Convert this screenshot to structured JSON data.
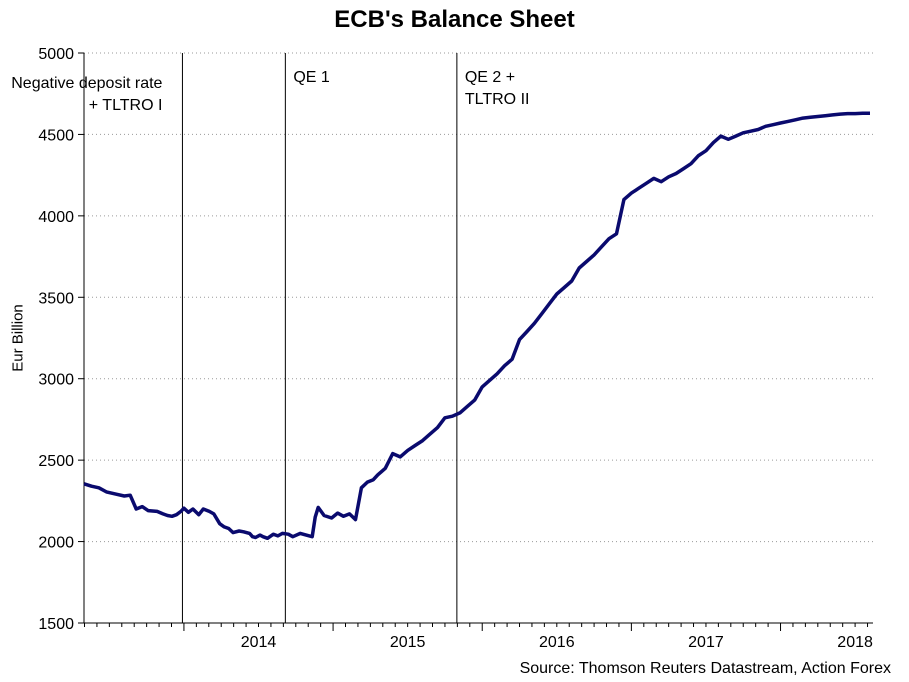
{
  "chart_data": {
    "type": "line",
    "title": "ECB's Balance Sheet",
    "ylabel": "Eur Billion",
    "xlabel": "",
    "source": "Source: Thomson Reuters Datastream, Action Forex",
    "ylim": [
      1500,
      5000
    ],
    "yticks": [
      1500,
      2000,
      2500,
      3000,
      3500,
      4000,
      4500,
      5000
    ],
    "xlim": [
      2013.33,
      2018.62
    ],
    "xticks": [
      {
        "label": "2014",
        "x": 2014.0
      },
      {
        "label": "2015",
        "x": 2015.0
      },
      {
        "label": "2016",
        "x": 2016.0
      },
      {
        "label": "2017",
        "x": 2017.0
      },
      {
        "label": "2018",
        "x": 2018.0
      }
    ],
    "grid": "horizontal-dotted",
    "line_color": "#0a0a6e",
    "series": [
      {
        "x": [
          2013.33,
          2013.38,
          2013.43,
          2013.48,
          2013.55,
          2013.6,
          2013.64,
          2013.68,
          2013.72,
          2013.76,
          2013.82,
          2013.86,
          2013.89,
          2013.92,
          2013.95,
          2013.98,
          2014.0,
          2014.03,
          2014.06,
          2014.1,
          2014.13,
          2014.17,
          2014.2,
          2014.24,
          2014.27,
          2014.3,
          2014.33,
          2014.37,
          2014.4,
          2014.44,
          2014.46,
          2014.48,
          2014.51,
          2014.53,
          2014.56,
          2014.6,
          2014.63,
          2014.66,
          2014.7,
          2014.73,
          2014.78,
          2014.82,
          2014.86,
          2014.88,
          2014.9,
          2014.94,
          2014.99,
          2015.03,
          2015.07,
          2015.11,
          2015.15,
          2015.19,
          2015.23,
          2015.27,
          2015.3,
          2015.35,
          2015.4,
          2015.45,
          2015.5,
          2015.55,
          2015.6,
          2015.65,
          2015.7,
          2015.75,
          2015.8,
          2015.85,
          2015.9,
          2015.95,
          2016.0,
          2016.05,
          2016.1,
          2016.15,
          2016.2,
          2016.25,
          2016.3,
          2016.35,
          2016.4,
          2016.45,
          2016.5,
          2016.55,
          2016.6,
          2016.65,
          2016.7,
          2016.75,
          2016.8,
          2016.85,
          2016.9,
          2016.95,
          2017.0,
          2017.05,
          2017.1,
          2017.15,
          2017.2,
          2017.25,
          2017.3,
          2017.35,
          2017.4,
          2017.45,
          2017.5,
          2017.55,
          2017.6,
          2017.65,
          2017.7,
          2017.75,
          2017.8,
          2017.85,
          2017.9,
          2017.95,
          2018.0,
          2018.05,
          2018.1,
          2018.15,
          2018.2,
          2018.25,
          2018.3,
          2018.35,
          2018.4,
          2018.45,
          2018.5,
          2018.55,
          2018.6
        ],
        "y": [
          2355,
          2340,
          2330,
          2305,
          2290,
          2280,
          2285,
          2200,
          2215,
          2190,
          2185,
          2170,
          2160,
          2155,
          2165,
          2185,
          2205,
          2180,
          2200,
          2165,
          2200,
          2185,
          2170,
          2110,
          2090,
          2080,
          2055,
          2065,
          2060,
          2050,
          2030,
          2025,
          2040,
          2030,
          2020,
          2045,
          2035,
          2050,
          2045,
          2030,
          2050,
          2040,
          2030,
          2150,
          2210,
          2160,
          2145,
          2175,
          2155,
          2170,
          2135,
          2330,
          2365,
          2380,
          2410,
          2450,
          2540,
          2520,
          2560,
          2590,
          2620,
          2660,
          2700,
          2760,
          2770,
          2790,
          2830,
          2870,
          2950,
          2990,
          3030,
          3080,
          3120,
          3240,
          3290,
          3340,
          3400,
          3460,
          3520,
          3560,
          3600,
          3680,
          3720,
          3760,
          3810,
          3860,
          3890,
          4100,
          4140,
          4170,
          4200,
          4230,
          4210,
          4240,
          4260,
          4290,
          4320,
          4370,
          4400,
          4450,
          4490,
          4470,
          4490,
          4510,
          4520,
          4530,
          4550,
          4560,
          4570,
          4580,
          4590,
          4600,
          4605,
          4610,
          4615,
          4620,
          4625,
          4628,
          4628,
          4630,
          4630
        ]
      }
    ],
    "annotations": [
      {
        "x": 2013.99,
        "lines": [
          "Negative deposit rate",
          "+ TLTRO I"
        ]
      },
      {
        "x": 2014.68,
        "lines": [
          "QE 1"
        ]
      },
      {
        "x": 2015.83,
        "lines": [
          "QE 2 +",
          "TLTRO II"
        ]
      }
    ]
  }
}
